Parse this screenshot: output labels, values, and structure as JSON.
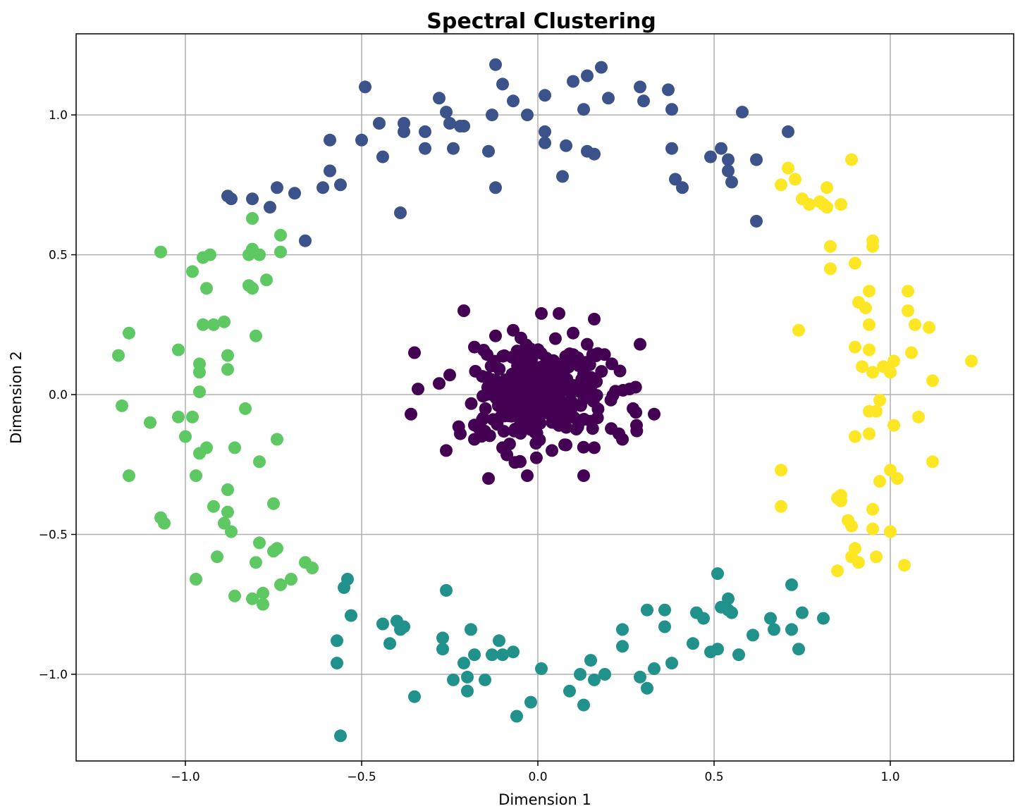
{
  "chart_data": {
    "type": "scatter",
    "title": "Spectral Clustering",
    "xlabel": "Dimension 1",
    "ylabel": "Dimension 2",
    "xlim": [
      -1.31,
      1.35
    ],
    "ylim": [
      -1.31,
      1.29
    ],
    "xticks": [
      -1.0,
      -0.5,
      0.0,
      0.5,
      1.0
    ],
    "yticks": [
      -1.0,
      -0.5,
      0.0,
      0.5,
      1.0
    ],
    "xtick_labels": [
      "−1.0",
      "−0.5",
      "0.0",
      "0.5",
      "1.0"
    ],
    "ytick_labels": [
      "−1.0",
      "−0.5",
      "0.0",
      "0.5",
      "1.0"
    ],
    "grid": true,
    "legend": "none",
    "colormap": "viridis",
    "series": [
      {
        "cluster": 0,
        "color": "#440154",
        "generation": {
          "kind": "gaussian",
          "center": [
            0.0,
            0.0
          ],
          "std": [
            0.09,
            0.09
          ],
          "count": 300,
          "seed": 7
        },
        "points": [
          [
            -0.21,
            0.3
          ],
          [
            -0.35,
            0.15
          ],
          [
            -0.34,
            0.02
          ],
          [
            -0.36,
            -0.07
          ],
          [
            -0.26,
            -0.2
          ],
          [
            -0.14,
            -0.3
          ],
          [
            -0.03,
            -0.29
          ],
          [
            0.13,
            -0.29
          ],
          [
            0.29,
            0.18
          ],
          [
            0.33,
            -0.07
          ],
          [
            0.28,
            -0.11
          ],
          [
            0.24,
            -0.16
          ],
          [
            0.16,
            0.27
          ],
          [
            0.06,
            0.29
          ],
          [
            0.01,
            0.29
          ],
          [
            0.16,
            -0.19
          ],
          [
            -0.05,
            -0.24
          ],
          [
            0.21,
            0.11
          ],
          [
            0.27,
            -0.05
          ],
          [
            0.23,
            -0.14
          ],
          [
            -0.28,
            0.04
          ],
          [
            -0.25,
            0.07
          ],
          [
            -0.22,
            -0.14
          ],
          [
            -0.18,
            0.17
          ],
          [
            -0.12,
            0.21
          ],
          [
            -0.07,
            0.23
          ],
          [
            0.1,
            0.22
          ],
          [
            0.14,
            0.18
          ],
          [
            -0.18,
            -0.16
          ],
          [
            -0.1,
            -0.19
          ],
          [
            0.08,
            -0.18
          ],
          [
            0.04,
            -0.2
          ],
          [
            0.26,
            0.02
          ]
        ]
      },
      {
        "cluster": 1,
        "color": "#3b528b",
        "points": [
          [
            -0.12,
            1.18
          ],
          [
            -0.49,
            1.1
          ],
          [
            -0.28,
            1.06
          ],
          [
            -0.26,
            1.01
          ],
          [
            -0.25,
            0.97
          ],
          [
            -0.45,
            0.97
          ],
          [
            -0.38,
            0.97
          ],
          [
            -0.32,
            0.94
          ],
          [
            -0.38,
            0.94
          ],
          [
            -0.22,
            0.96
          ],
          [
            -0.21,
            0.96
          ],
          [
            -0.5,
            0.91
          ],
          [
            -0.59,
            0.91
          ],
          [
            -0.44,
            0.85
          ],
          [
            -0.32,
            0.88
          ],
          [
            -0.24,
            0.88
          ],
          [
            -0.14,
            0.87
          ],
          [
            -0.59,
            0.8
          ],
          [
            -0.56,
            0.75
          ],
          [
            -0.61,
            0.74
          ],
          [
            -0.69,
            0.72
          ],
          [
            -0.74,
            0.74
          ],
          [
            -0.88,
            0.71
          ],
          [
            -0.87,
            0.7
          ],
          [
            -0.81,
            0.7
          ],
          [
            -0.76,
            0.67
          ],
          [
            -0.39,
            0.65
          ],
          [
            -0.66,
            0.55
          ],
          [
            -0.12,
            0.74
          ],
          [
            -0.1,
            1.11
          ],
          [
            -0.07,
            1.05
          ],
          [
            -0.13,
            1.0
          ],
          [
            -0.03,
            1.0
          ],
          [
            0.02,
            1.07
          ],
          [
            0.1,
            1.12
          ],
          [
            0.14,
            1.14
          ],
          [
            0.18,
            1.17
          ],
          [
            0.13,
            1.02
          ],
          [
            0.2,
            1.06
          ],
          [
            0.02,
            0.94
          ],
          [
            0.02,
            0.9
          ],
          [
            0.08,
            0.89
          ],
          [
            0.14,
            0.87
          ],
          [
            0.16,
            0.86
          ],
          [
            0.07,
            0.78
          ],
          [
            0.29,
            1.1
          ],
          [
            0.3,
            1.05
          ],
          [
            0.37,
            1.09
          ],
          [
            0.38,
            1.02
          ],
          [
            0.38,
            0.88
          ],
          [
            0.39,
            0.77
          ],
          [
            0.41,
            0.74
          ],
          [
            0.49,
            0.85
          ],
          [
            0.52,
            0.88
          ],
          [
            0.54,
            0.84
          ],
          [
            0.54,
            0.8
          ],
          [
            0.55,
            0.76
          ],
          [
            0.58,
            1.01
          ],
          [
            0.62,
            0.84
          ],
          [
            0.62,
            0.62
          ],
          [
            0.71,
            0.94
          ]
        ]
      },
      {
        "cluster": 2,
        "color": "#21918c",
        "points": [
          [
            -0.56,
            -1.22
          ],
          [
            -0.57,
            -0.96
          ],
          [
            -0.57,
            -0.88
          ],
          [
            -0.55,
            -0.69
          ],
          [
            -0.54,
            -0.66
          ],
          [
            -0.53,
            -0.79
          ],
          [
            -0.44,
            -0.82
          ],
          [
            -0.42,
            -0.89
          ],
          [
            -0.4,
            -0.81
          ],
          [
            -0.39,
            -0.84
          ],
          [
            -0.38,
            -0.83
          ],
          [
            -0.35,
            -1.08
          ],
          [
            -0.26,
            -0.7
          ],
          [
            -0.27,
            -0.87
          ],
          [
            -0.27,
            -0.91
          ],
          [
            -0.24,
            -1.02
          ],
          [
            -0.21,
            -0.96
          ],
          [
            -0.2,
            -1.01
          ],
          [
            -0.2,
            -1.06
          ],
          [
            -0.19,
            -0.84
          ],
          [
            -0.18,
            -0.93
          ],
          [
            -0.15,
            -1.02
          ],
          [
            -0.13,
            -0.93
          ],
          [
            -0.11,
            -0.88
          ],
          [
            -0.1,
            -0.93
          ],
          [
            -0.07,
            -0.92
          ],
          [
            -0.06,
            -1.15
          ],
          [
            -0.02,
            -1.1
          ],
          [
            0.01,
            -0.98
          ],
          [
            0.09,
            -1.06
          ],
          [
            0.12,
            -1.0
          ],
          [
            0.13,
            -1.11
          ],
          [
            0.15,
            -0.95
          ],
          [
            0.16,
            -1.02
          ],
          [
            0.19,
            -1.0
          ],
          [
            0.24,
            -0.9
          ],
          [
            0.24,
            -0.84
          ],
          [
            0.29,
            -1.01
          ],
          [
            0.31,
            -1.05
          ],
          [
            0.31,
            -0.77
          ],
          [
            0.33,
            -0.98
          ],
          [
            0.36,
            -0.77
          ],
          [
            0.36,
            -0.83
          ],
          [
            0.38,
            -0.96
          ],
          [
            0.44,
            -0.89
          ],
          [
            0.45,
            -0.78
          ],
          [
            0.47,
            -0.8
          ],
          [
            0.49,
            -0.92
          ],
          [
            0.51,
            -0.64
          ],
          [
            0.51,
            -0.91
          ],
          [
            0.52,
            -0.76
          ],
          [
            0.54,
            -0.73
          ],
          [
            0.54,
            -0.77
          ],
          [
            0.55,
            -0.78
          ],
          [
            0.57,
            -0.93
          ],
          [
            0.61,
            -0.86
          ],
          [
            0.66,
            -0.8
          ],
          [
            0.67,
            -0.84
          ],
          [
            0.72,
            -0.68
          ],
          [
            0.72,
            -0.84
          ],
          [
            0.74,
            -0.91
          ],
          [
            0.75,
            -0.78
          ],
          [
            0.81,
            -0.8
          ]
        ]
      },
      {
        "cluster": 3,
        "color": "#5ec962",
        "points": [
          [
            -1.19,
            0.14
          ],
          [
            -1.18,
            -0.04
          ],
          [
            -1.16,
            0.22
          ],
          [
            -1.16,
            -0.29
          ],
          [
            -1.1,
            -0.1
          ],
          [
            -1.07,
            0.51
          ],
          [
            -1.07,
            -0.44
          ],
          [
            -1.06,
            -0.46
          ],
          [
            -1.02,
            0.16
          ],
          [
            -1.02,
            -0.08
          ],
          [
            -1.0,
            -0.15
          ],
          [
            -0.98,
            0.44
          ],
          [
            -0.98,
            -0.08
          ],
          [
            -0.97,
            -0.66
          ],
          [
            -0.97,
            -0.29
          ],
          [
            -0.96,
            0.11
          ],
          [
            -0.96,
            0.08
          ],
          [
            -0.96,
            0.01
          ],
          [
            -0.96,
            -0.21
          ],
          [
            -0.95,
            0.25
          ],
          [
            -0.95,
            0.49
          ],
          [
            -0.94,
            0.38
          ],
          [
            -0.94,
            -0.19
          ],
          [
            -0.93,
            0.5
          ],
          [
            -0.92,
            0.25
          ],
          [
            -0.92,
            -0.4
          ],
          [
            -0.91,
            -0.58
          ],
          [
            -0.89,
            -0.46
          ],
          [
            -0.89,
            0.26
          ],
          [
            -0.88,
            0.14
          ],
          [
            -0.88,
            0.09
          ],
          [
            -0.88,
            -0.34
          ],
          [
            -0.88,
            -0.42
          ],
          [
            -0.87,
            -0.49
          ],
          [
            -0.86,
            -0.72
          ],
          [
            -0.86,
            -0.19
          ],
          [
            -0.83,
            -0.05
          ],
          [
            -0.82,
            0.5
          ],
          [
            -0.82,
            0.39
          ],
          [
            -0.81,
            0.38
          ],
          [
            -0.81,
            0.63
          ],
          [
            -0.81,
            0.52
          ],
          [
            -0.81,
            -0.73
          ],
          [
            -0.8,
            0.21
          ],
          [
            -0.8,
            -0.6
          ],
          [
            -0.79,
            -0.24
          ],
          [
            -0.79,
            -0.53
          ],
          [
            -0.79,
            0.5
          ],
          [
            -0.78,
            -0.75
          ],
          [
            -0.78,
            -0.71
          ],
          [
            -0.77,
            0.41
          ],
          [
            -0.75,
            -0.39
          ],
          [
            -0.75,
            -0.56
          ],
          [
            -0.74,
            -0.55
          ],
          [
            -0.74,
            -0.16
          ],
          [
            -0.73,
            -0.68
          ],
          [
            -0.73,
            0.57
          ],
          [
            -0.73,
            0.51
          ],
          [
            -0.7,
            -0.66
          ],
          [
            -0.66,
            -0.6
          ],
          [
            -0.64,
            -0.62
          ]
        ]
      },
      {
        "cluster": 4,
        "color": "#fde725",
        "points": [
          [
            0.69,
            0.75
          ],
          [
            0.71,
            0.81
          ],
          [
            0.73,
            0.77
          ],
          [
            0.74,
            0.23
          ],
          [
            0.75,
            0.7
          ],
          [
            0.77,
            0.68
          ],
          [
            0.8,
            0.69
          ],
          [
            0.81,
            0.68
          ],
          [
            0.82,
            0.67
          ],
          [
            0.82,
            0.74
          ],
          [
            0.83,
            0.53
          ],
          [
            0.83,
            0.45
          ],
          [
            0.86,
            0.68
          ],
          [
            0.89,
            0.84
          ],
          [
            0.9,
            0.47
          ],
          [
            0.9,
            0.17
          ],
          [
            0.9,
            -0.15
          ],
          [
            0.91,
            0.33
          ],
          [
            0.92,
            0.1
          ],
          [
            0.93,
            0.31
          ],
          [
            0.94,
            0.37
          ],
          [
            0.94,
            0.25
          ],
          [
            0.94,
            0.16
          ],
          [
            0.94,
            -0.06
          ],
          [
            0.94,
            -0.14
          ],
          [
            0.95,
            0.08
          ],
          [
            0.95,
            0.55
          ],
          [
            0.95,
            0.53
          ],
          [
            0.96,
            -0.06
          ],
          [
            0.97,
            -0.02
          ],
          [
            0.97,
            -0.31
          ],
          [
            0.98,
            0.1
          ],
          [
            1.0,
            -0.27
          ],
          [
            1.0,
            0.08
          ],
          [
            1.01,
            -0.11
          ],
          [
            1.01,
            0.12
          ],
          [
            1.02,
            -0.3
          ],
          [
            1.05,
            0.37
          ],
          [
            1.05,
            0.3
          ],
          [
            1.06,
            0.15
          ],
          [
            1.07,
            0.25
          ],
          [
            1.08,
            -0.08
          ],
          [
            1.11,
            0.24
          ],
          [
            1.12,
            0.05
          ],
          [
            1.12,
            -0.24
          ],
          [
            1.23,
            0.12
          ],
          [
            0.69,
            -0.27
          ],
          [
            0.69,
            -0.4
          ],
          [
            0.85,
            -0.37
          ],
          [
            0.86,
            -0.38
          ],
          [
            0.86,
            -0.36
          ],
          [
            0.88,
            -0.45
          ],
          [
            0.89,
            -0.47
          ],
          [
            0.89,
            -0.58
          ],
          [
            0.9,
            -0.55
          ],
          [
            0.91,
            -0.6
          ],
          [
            0.85,
            -0.63
          ],
          [
            0.95,
            -0.41
          ],
          [
            0.95,
            -0.48
          ],
          [
            0.96,
            -0.58
          ],
          [
            1.0,
            -0.49
          ],
          [
            1.04,
            -0.61
          ]
        ]
      }
    ]
  }
}
